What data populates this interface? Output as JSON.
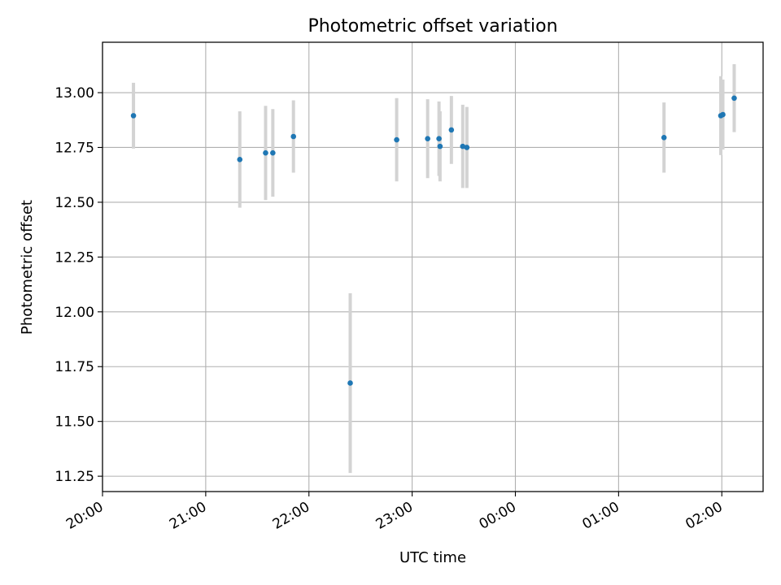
{
  "chart_data": {
    "type": "scatter",
    "title": "Photometric offset variation",
    "xlabel": "UTC time",
    "ylabel": "Photometric offset",
    "x_unit": "hours after 20:00 UTC",
    "xlim": [
      0,
      6.4
    ],
    "ylim": [
      11.18,
      13.23
    ],
    "x_ticks": [
      {
        "value": 0,
        "label": "20:00"
      },
      {
        "value": 1,
        "label": "21:00"
      },
      {
        "value": 2,
        "label": "22:00"
      },
      {
        "value": 3,
        "label": "23:00"
      },
      {
        "value": 4,
        "label": "00:00"
      },
      {
        "value": 5,
        "label": "01:00"
      },
      {
        "value": 6,
        "label": "02:00"
      }
    ],
    "y_ticks": [
      {
        "value": 11.25,
        "label": "11.25"
      },
      {
        "value": 11.5,
        "label": "11.50"
      },
      {
        "value": 11.75,
        "label": "11.75"
      },
      {
        "value": 12.0,
        "label": "12.00"
      },
      {
        "value": 12.25,
        "label": "12.25"
      },
      {
        "value": 12.5,
        "label": "12.50"
      },
      {
        "value": 12.75,
        "label": "12.75"
      },
      {
        "value": 13.0,
        "label": "13.00"
      }
    ],
    "grid": true,
    "colors": {
      "point": "#1f77b4",
      "errorbar": "#d3d3d3",
      "grid": "#b0b0b0"
    },
    "points": [
      {
        "x": 0.3,
        "y": 12.895,
        "err": 0.15
      },
      {
        "x": 1.33,
        "y": 12.695,
        "err": 0.22
      },
      {
        "x": 1.58,
        "y": 12.725,
        "err": 0.215
      },
      {
        "x": 1.65,
        "y": 12.725,
        "err": 0.2
      },
      {
        "x": 1.85,
        "y": 12.8,
        "err": 0.165
      },
      {
        "x": 2.4,
        "y": 11.675,
        "err": 0.41
      },
      {
        "x": 2.85,
        "y": 12.785,
        "err": 0.19
      },
      {
        "x": 3.15,
        "y": 12.79,
        "err": 0.18
      },
      {
        "x": 3.26,
        "y": 12.79,
        "err": 0.17
      },
      {
        "x": 3.27,
        "y": 12.755,
        "err": 0.16
      },
      {
        "x": 3.38,
        "y": 12.83,
        "err": 0.155
      },
      {
        "x": 3.49,
        "y": 12.755,
        "err": 0.19
      },
      {
        "x": 3.53,
        "y": 12.75,
        "err": 0.185
      },
      {
        "x": 5.44,
        "y": 12.795,
        "err": 0.16
      },
      {
        "x": 5.99,
        "y": 12.895,
        "err": 0.18
      },
      {
        "x": 6.01,
        "y": 12.9,
        "err": 0.16
      },
      {
        "x": 6.12,
        "y": 12.975,
        "err": 0.155
      }
    ]
  }
}
